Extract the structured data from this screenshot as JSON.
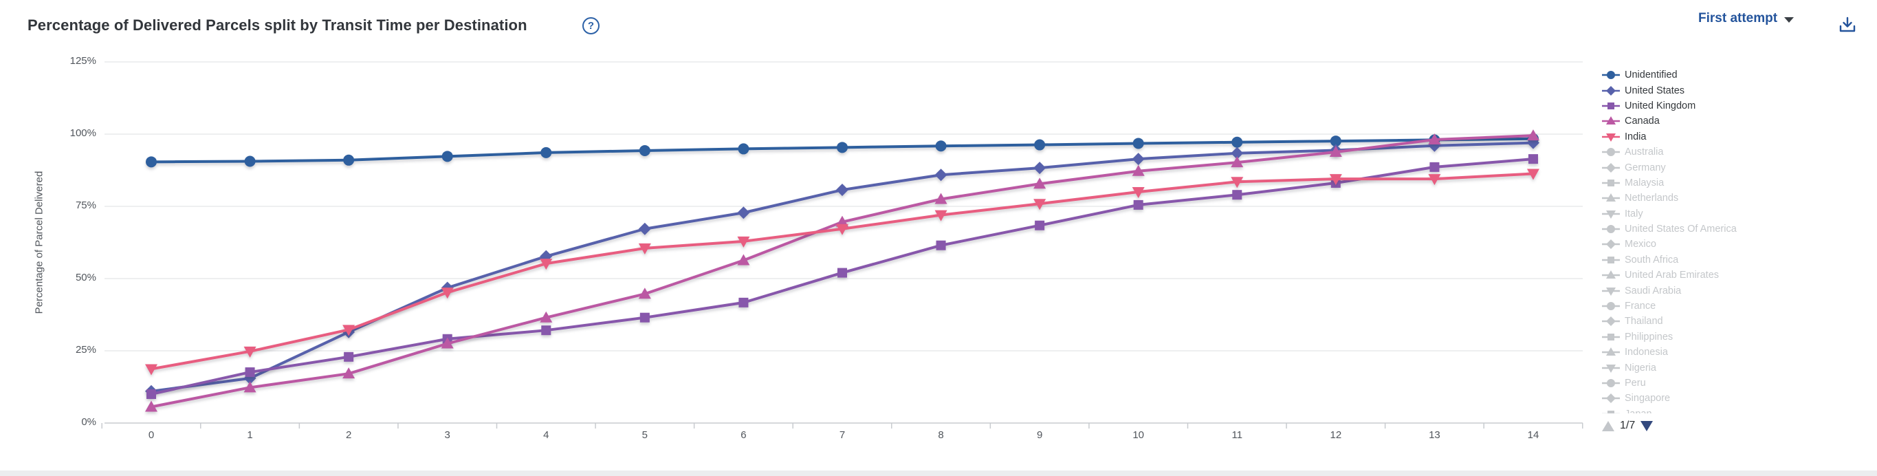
{
  "header": {
    "title": "Percentage of Delivered Parcels split by Transit Time per Destination",
    "help_icon": "question-mark",
    "attempt_selector": {
      "value": "First attempt"
    },
    "download_icon": "download"
  },
  "chart_data": {
    "type": "line",
    "title": "Percentage of Delivered Parcels split by Transit Time per Destination",
    "xlabel": "",
    "ylabel": "Percentage of Parcel Delivered",
    "x": [
      0,
      1,
      2,
      3,
      4,
      5,
      6,
      7,
      8,
      9,
      10,
      11,
      12,
      13,
      14
    ],
    "x_ticks": [
      "0",
      "1",
      "2",
      "3",
      "4",
      "5",
      "6",
      "7",
      "8",
      "9",
      "10",
      "11",
      "12",
      "13",
      "14"
    ],
    "y_ticks": [
      "0%",
      "25%",
      "50%",
      "75%",
      "100%",
      "125%"
    ],
    "y_tick_values": [
      0,
      25,
      50,
      75,
      100,
      125
    ],
    "ylim": [
      0,
      125
    ],
    "grid": true,
    "legend_position": "right",
    "series": [
      {
        "name": "Unidentified",
        "color": "#2e5f9e",
        "symbol": "circle",
        "values": [
          90.4,
          90.6,
          91.0,
          92.3,
          93.6,
          94.3,
          94.9,
          95.4,
          95.9,
          96.3,
          96.8,
          97.2,
          97.6,
          98.0,
          98.4
        ]
      },
      {
        "name": "United States",
        "color": "#5761ab",
        "symbol": "diamond",
        "values": [
          11.0,
          15.5,
          31.5,
          46.8,
          57.7,
          67.2,
          72.8,
          80.7,
          85.9,
          88.3,
          91.4,
          93.4,
          94.4,
          96.0,
          97.0
        ]
      },
      {
        "name": "United Kingdom",
        "color": "#8757ab",
        "symbol": "square",
        "values": [
          10.0,
          17.6,
          22.9,
          29.1,
          32.1,
          36.5,
          41.7,
          52.0,
          61.5,
          68.4,
          75.5,
          79.0,
          83.1,
          88.6,
          91.4
        ]
      },
      {
        "name": "Canada",
        "color": "#bb58a3",
        "symbol": "triangle-up",
        "values": [
          5.6,
          12.3,
          17.1,
          27.5,
          36.5,
          44.7,
          56.3,
          69.6,
          77.5,
          82.8,
          87.2,
          90.2,
          93.8,
          98.1,
          99.5
        ]
      },
      {
        "name": "India",
        "color": "#e85d80",
        "symbol": "triangle-down",
        "values": [
          18.7,
          24.8,
          32.3,
          45.2,
          55.2,
          60.5,
          62.9,
          67.2,
          72.0,
          75.9,
          80.0,
          83.5,
          84.5,
          84.5,
          86.3
        ]
      }
    ]
  },
  "legend": {
    "active_text_color": "#34383c",
    "inactive_color": "#c4c7ca",
    "items": [
      {
        "label": "Unidentified",
        "symbol": "circle",
        "active": true,
        "color": "#2e5f9e"
      },
      {
        "label": "United States",
        "symbol": "diamond",
        "active": true,
        "color": "#5761ab"
      },
      {
        "label": "United Kingdom",
        "symbol": "square",
        "active": true,
        "color": "#8757ab"
      },
      {
        "label": "Canada",
        "symbol": "triangle-up",
        "active": true,
        "color": "#bb58a3"
      },
      {
        "label": "India",
        "symbol": "triangle-down",
        "active": true,
        "color": "#e85d80"
      },
      {
        "label": "Australia",
        "symbol": "circle",
        "active": false
      },
      {
        "label": "Germany",
        "symbol": "diamond",
        "active": false
      },
      {
        "label": "Malaysia",
        "symbol": "square",
        "active": false
      },
      {
        "label": "Netherlands",
        "symbol": "triangle-up",
        "active": false
      },
      {
        "label": "Italy",
        "symbol": "triangle-down",
        "active": false
      },
      {
        "label": "United States Of America",
        "symbol": "circle",
        "active": false
      },
      {
        "label": "Mexico",
        "symbol": "diamond",
        "active": false
      },
      {
        "label": "South Africa",
        "symbol": "square",
        "active": false
      },
      {
        "label": "United Arab Emirates",
        "symbol": "triangle-up",
        "active": false
      },
      {
        "label": "Saudi Arabia",
        "symbol": "triangle-down",
        "active": false
      },
      {
        "label": "France",
        "symbol": "circle",
        "active": false
      },
      {
        "label": "Thailand",
        "symbol": "diamond",
        "active": false
      },
      {
        "label": "Philippines",
        "symbol": "square",
        "active": false
      },
      {
        "label": "Indonesia",
        "symbol": "triangle-up",
        "active": false
      },
      {
        "label": "Nigeria",
        "symbol": "triangle-down",
        "active": false
      },
      {
        "label": "Peru",
        "symbol": "circle",
        "active": false
      },
      {
        "label": "Singapore",
        "symbol": "diamond",
        "active": false
      },
      {
        "label": "Japan",
        "symbol": "square",
        "active": false
      }
    ],
    "pagination": {
      "label": "1/7",
      "up_icon": "triangle-up",
      "down_icon": "triangle-down"
    }
  }
}
